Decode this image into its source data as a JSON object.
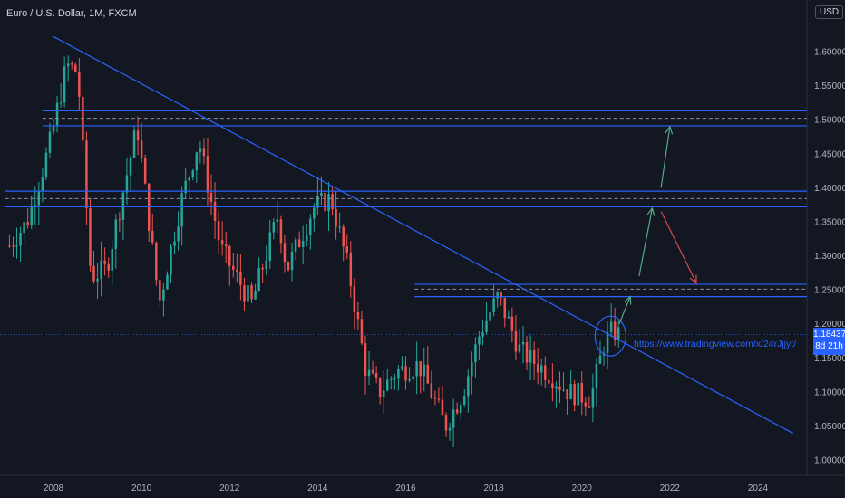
{
  "header": {
    "title": "Euro / U.S. Dollar, 1M, FXCM",
    "currency": "USD"
  },
  "last_price": {
    "value": "1.18437",
    "countdown": "8d 21h"
  },
  "annotation": {
    "url": "https://www.tradingview.com/x/24rJjjyt/"
  },
  "colors": {
    "bg": "#131722",
    "up": "#26a69a",
    "down": "#ef5350",
    "line": "#2962ff",
    "grid": "#1e222d",
    "green_arrow": "#57a88b",
    "red_arrow": "#d84a48"
  },
  "chart_data": {
    "type": "candlestick",
    "symbol": "EURUSD",
    "interval": "1M",
    "x_ticks": [
      "2008",
      "2010",
      "2012",
      "2014",
      "2016",
      "2018",
      "2020",
      "2022",
      "2024"
    ],
    "y_ticks": [
      "1.60000",
      "1.55000",
      "1.50000",
      "1.45000",
      "1.40000",
      "1.35000",
      "1.30000",
      "1.25000",
      "1.20000",
      "1.15000",
      "1.10000",
      "1.05000",
      "1.00000"
    ],
    "ylim": [
      0.98,
      1.64
    ],
    "xlim": [
      2007.0,
      2025.0
    ],
    "last": 1.18437,
    "anchors": [
      [
        2007.0,
        1.315
      ],
      [
        2007.4,
        1.35
      ],
      [
        2007.9,
        1.46
      ],
      [
        2008.3,
        1.58
      ],
      [
        2008.55,
        1.57
      ],
      [
        2008.85,
        1.27
      ],
      [
        2009.2,
        1.28
      ],
      [
        2009.9,
        1.49
      ],
      [
        2010.4,
        1.23
      ],
      [
        2010.9,
        1.38
      ],
      [
        2011.3,
        1.47
      ],
      [
        2011.8,
        1.31
      ],
      [
        2012.5,
        1.23
      ],
      [
        2013.1,
        1.36
      ],
      [
        2013.3,
        1.28
      ],
      [
        2013.9,
        1.37
      ],
      [
        2014.3,
        1.385
      ],
      [
        2014.7,
        1.28
      ],
      [
        2015.1,
        1.13
      ],
      [
        2015.4,
        1.1
      ],
      [
        2015.8,
        1.13
      ],
      [
        2016.3,
        1.14
      ],
      [
        2016.9,
        1.05
      ],
      [
        2017.3,
        1.1
      ],
      [
        2017.7,
        1.19
      ],
      [
        2018.1,
        1.24
      ],
      [
        2018.6,
        1.16
      ],
      [
        2019.2,
        1.13
      ],
      [
        2019.7,
        1.1
      ],
      [
        2020.2,
        1.09
      ],
      [
        2020.5,
        1.17
      ],
      [
        2020.7,
        1.19
      ],
      [
        2020.85,
        1.184
      ]
    ],
    "channels": [
      {
        "top": 1.513,
        "bottom": 1.491,
        "mid": 1.502,
        "x_start": 2007.75
      },
      {
        "top": 1.395,
        "bottom": 1.372,
        "mid": 1.384,
        "x_start": 2006.9
      },
      {
        "top": 1.258,
        "bottom": 1.24,
        "mid": 1.251,
        "x_start": 2016.2
      }
    ],
    "trendline": [
      [
        2008.0,
        1.622
      ],
      [
        2024.8,
        1.039
      ]
    ],
    "last_price_line": 1.18437,
    "circle": {
      "x": 2020.65,
      "y": 1.182
    },
    "arrows": [
      {
        "from": [
          2020.85,
          1.2
        ],
        "to": [
          2021.1,
          1.24
        ],
        "color": "green"
      },
      {
        "from": [
          2021.3,
          1.27
        ],
        "to": [
          2021.6,
          1.37
        ],
        "color": "green"
      },
      {
        "from": [
          2021.8,
          1.4
        ],
        "to": [
          2022.0,
          1.49
        ],
        "color": "green"
      },
      {
        "from": [
          2021.8,
          1.365
        ],
        "to": [
          2022.6,
          1.26
        ],
        "color": "red"
      }
    ]
  }
}
